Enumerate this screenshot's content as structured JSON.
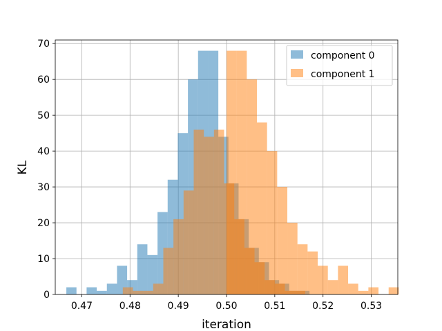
{
  "chart_data": {
    "type": "bar",
    "subtype": "overlapping-histogram",
    "xlabel": "iteration",
    "ylabel": "KL",
    "xlim": [
      0.4645,
      0.5355
    ],
    "ylim": [
      0,
      71
    ],
    "xticks": [
      0.47,
      0.48,
      0.49,
      0.5,
      0.51,
      0.52,
      0.53
    ],
    "xtick_labels": [
      "0.47",
      "0.48",
      "0.49",
      "0.50",
      "0.51",
      "0.52",
      "0.53"
    ],
    "yticks": [
      0,
      10,
      20,
      30,
      40,
      50,
      60,
      70
    ],
    "ytick_labels": [
      "0",
      "10",
      "20",
      "30",
      "40",
      "50",
      "60",
      "70"
    ],
    "grid": true,
    "legend_position": "top-right",
    "bin_width": 0.0021,
    "series": [
      {
        "name": "component 0",
        "color": "#1f77b4",
        "alpha": 0.5,
        "bin_start": 0.4668,
        "counts": [
          2,
          0,
          2,
          1,
          3,
          8,
          4,
          14,
          11,
          23,
          32,
          45,
          60,
          68,
          68,
          44,
          31,
          21,
          13,
          9,
          4,
          3,
          1,
          1
        ]
      },
      {
        "name": "component 1",
        "color": "#ff7f0e",
        "alpha": 0.5,
        "bin_start": 0.4785,
        "counts": [
          2,
          1,
          1,
          3,
          13,
          21,
          29,
          46,
          44,
          46,
          31,
          21,
          13,
          9,
          4,
          3,
          1,
          1
        ]
      },
      {
        "name": "component 1",
        "color": "#ff7f0e",
        "alpha": 0.5,
        "bin_start": 0.5,
        "counts": [
          68,
          68,
          60,
          48,
          40,
          30,
          20,
          14,
          12,
          8,
          4,
          8,
          3,
          1,
          2,
          0,
          2
        ]
      }
    ],
    "legend": [
      "component 0",
      "component 1"
    ]
  },
  "legend_colors": {
    "component0": "#1f77b4",
    "component1": "#ff7f0e"
  }
}
